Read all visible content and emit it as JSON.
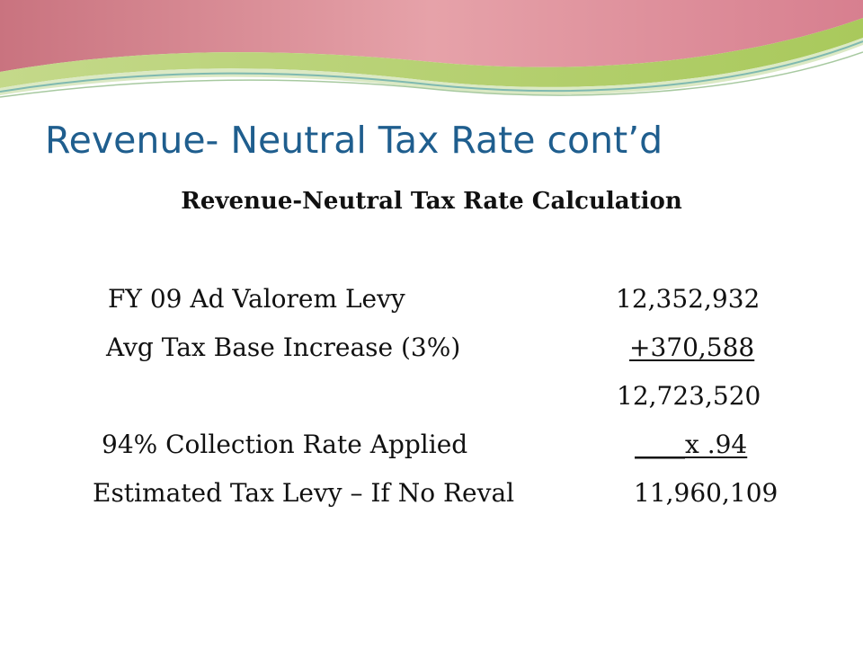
{
  "slide": {
    "title": "Revenue- Neutral Tax Rate cont’d",
    "subtitle": "Revenue-Neutral Tax Rate Calculation",
    "rows": [
      {
        "label": "FY 09 Ad Valorem Levy",
        "value": "12,352,932"
      },
      {
        "label": "Avg Tax Base Increase (3%)",
        "value": "+370,588"
      },
      {
        "label": "",
        "value": "12,723,520"
      },
      {
        "label": "94% Collection Rate Applied",
        "value": "____x .94"
      },
      {
        "label": "Estimated Tax Levy – If No Reval",
        "value": "11,960,109"
      }
    ]
  },
  "colors": {
    "title": "#1f5e8e",
    "wave_pink": "#d9869a",
    "wave_green": "#b8d36a",
    "wave_teal": "#7fb9b0"
  }
}
